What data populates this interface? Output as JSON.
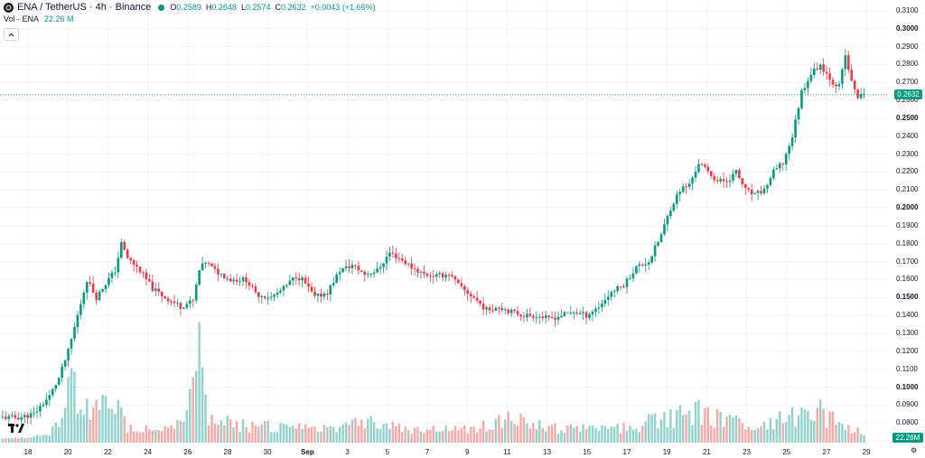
{
  "header": {
    "symbol": "ENA / TetherUS · 4h · Binance",
    "logo_icon": "ena-coin-icon",
    "status_color": "#089981",
    "o_label": "O",
    "o_value": "0.2589",
    "h_label": "H",
    "h_value": "0.2648",
    "l_label": "L",
    "l_value": "0.2574",
    "c_label": "C",
    "c_value": "0.2632",
    "change": "+0.0043 (+1.66%)"
  },
  "volume_legend": {
    "label": "Vol · ENA",
    "value": "22.26 M"
  },
  "collapse_icon": "chevron-up-icon",
  "price_axis": {
    "labels": [
      "0.3100",
      "0.3000",
      "0.2900",
      "0.2800",
      "0.2700",
      "0.2600",
      "0.2500",
      "0.2400",
      "0.2300",
      "0.2200",
      "0.2100",
      "0.2000",
      "0.1900",
      "0.1800",
      "0.1700",
      "0.1600",
      "0.1500",
      "0.1400",
      "0.1300",
      "0.1200",
      "0.1100",
      "0.1000",
      "0.0900",
      "0.0800",
      "0.0700"
    ],
    "bold_labels": [
      "0.3000",
      "0.2500",
      "0.2000",
      "0.1500",
      "0.1000"
    ],
    "current_price": "0.2632",
    "volume_badge": "22.26M"
  },
  "time_axis": {
    "labels": [
      "18",
      "20",
      "22",
      "24",
      "26",
      "28",
      "30",
      "Sep",
      "3",
      "5",
      "7",
      "9",
      "11",
      "13",
      "15",
      "17",
      "19",
      "21",
      "23",
      "25",
      "27",
      "29"
    ],
    "bold_label": "Sep"
  },
  "colors": {
    "up": "#089981",
    "down": "#f23645",
    "vol_up": "#92d2cc",
    "vol_down": "#f7a9a7"
  },
  "chart_data": {
    "type": "candlestick",
    "y_range": [
      0.069,
      0.312
    ],
    "anchors": [
      [
        0,
        0.083
      ],
      [
        5,
        0.083
      ],
      [
        10,
        0.085
      ],
      [
        15,
        0.095
      ],
      [
        18,
        0.105
      ],
      [
        21,
        0.12
      ],
      [
        24,
        0.14
      ],
      [
        27,
        0.16
      ],
      [
        30,
        0.15
      ],
      [
        33,
        0.158
      ],
      [
        36,
        0.165
      ],
      [
        38,
        0.18
      ],
      [
        40,
        0.172
      ],
      [
        44,
        0.165
      ],
      [
        48,
        0.155
      ],
      [
        52,
        0.15
      ],
      [
        57,
        0.145
      ],
      [
        61,
        0.148
      ],
      [
        63,
        0.165
      ],
      [
        65,
        0.17
      ],
      [
        68,
        0.165
      ],
      [
        73,
        0.16
      ],
      [
        78,
        0.16
      ],
      [
        81,
        0.152
      ],
      [
        86,
        0.15
      ],
      [
        90,
        0.155
      ],
      [
        94,
        0.162
      ],
      [
        96,
        0.16
      ],
      [
        100,
        0.15
      ],
      [
        104,
        0.153
      ],
      [
        108,
        0.165
      ],
      [
        112,
        0.168
      ],
      [
        116,
        0.163
      ],
      [
        120,
        0.165
      ],
      [
        124,
        0.175
      ],
      [
        127,
        0.172
      ],
      [
        131,
        0.167
      ],
      [
        135,
        0.163
      ],
      [
        139,
        0.162
      ],
      [
        143,
        0.163
      ],
      [
        147,
        0.155
      ],
      [
        151,
        0.15
      ],
      [
        155,
        0.143
      ],
      [
        159,
        0.145
      ],
      [
        163,
        0.142
      ],
      [
        167,
        0.14
      ],
      [
        171,
        0.14
      ],
      [
        175,
        0.138
      ],
      [
        179,
        0.14
      ],
      [
        183,
        0.142
      ],
      [
        187,
        0.14
      ],
      [
        191,
        0.145
      ],
      [
        195,
        0.153
      ],
      [
        199,
        0.157
      ],
      [
        203,
        0.167
      ],
      [
        207,
        0.17
      ],
      [
        211,
        0.185
      ],
      [
        214,
        0.2
      ],
      [
        217,
        0.21
      ],
      [
        220,
        0.213
      ],
      [
        223,
        0.225
      ],
      [
        226,
        0.22
      ],
      [
        229,
        0.215
      ],
      [
        232,
        0.215
      ],
      [
        235,
        0.22
      ],
      [
        238,
        0.21
      ],
      [
        241,
        0.207
      ],
      [
        244,
        0.21
      ],
      [
        247,
        0.22
      ],
      [
        250,
        0.225
      ],
      [
        253,
        0.24
      ],
      [
        256,
        0.265
      ],
      [
        259,
        0.275
      ],
      [
        262,
        0.28
      ],
      [
        264,
        0.275
      ],
      [
        266,
        0.27
      ],
      [
        268,
        0.268
      ],
      [
        270,
        0.285
      ],
      [
        272,
        0.27
      ],
      [
        274,
        0.262
      ],
      [
        276,
        0.263
      ]
    ],
    "volume_anchors": [
      [
        0,
        0.0713
      ],
      [
        10,
        0.0723
      ],
      [
        15,
        0.075
      ],
      [
        19,
        0.082
      ],
      [
        22,
        0.11
      ],
      [
        25,
        0.095
      ],
      [
        28,
        0.085
      ],
      [
        36,
        0.095
      ],
      [
        40,
        0.078
      ],
      [
        55,
        0.078
      ],
      [
        60,
        0.092
      ],
      [
        63,
        0.118
      ],
      [
        66,
        0.083
      ],
      [
        75,
        0.08
      ],
      [
        100,
        0.077
      ],
      [
        115,
        0.083
      ],
      [
        130,
        0.077
      ],
      [
        150,
        0.077
      ],
      [
        160,
        0.083
      ],
      [
        180,
        0.077
      ],
      [
        200,
        0.078
      ],
      [
        215,
        0.085
      ],
      [
        218,
        0.093
      ],
      [
        225,
        0.085
      ],
      [
        240,
        0.079
      ],
      [
        255,
        0.085
      ],
      [
        258,
        0.093
      ],
      [
        265,
        0.083
      ],
      [
        276,
        0.075
      ]
    ]
  }
}
